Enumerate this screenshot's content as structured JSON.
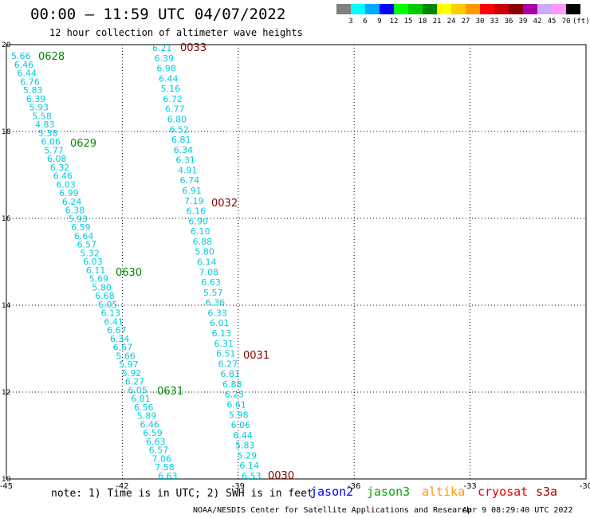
{
  "header": {
    "title": "00:00 – 11:59 UTC 04/07/2022",
    "subtitle": "12 hour collection of altimeter wave heights"
  },
  "legend": {
    "unit": "(ft)",
    "colors": [
      "#808080",
      "#00ffff",
      "#00aaff",
      "#0000ff",
      "#00ff00",
      "#00cc00",
      "#008800",
      "#ffff00",
      "#ffcc00",
      "#ff9900",
      "#ff0000",
      "#cc0000",
      "#880000",
      "#aa00aa",
      "#ccaaff",
      "#ff99ff",
      "#000000"
    ],
    "labels": [
      "3",
      "6",
      "9",
      "12",
      "15",
      "18",
      "21",
      "24",
      "27",
      "30",
      "33",
      "36",
      "39",
      "42",
      "45",
      "70"
    ]
  },
  "axes": {
    "x_ticks": [
      "-45",
      "-42",
      "-39",
      "-36",
      "-33",
      "-30"
    ],
    "y_ticks": [
      "10",
      "12",
      "14",
      "16",
      "18",
      "20"
    ],
    "lon_range": [
      -45,
      -30
    ],
    "lat_range": [
      10,
      20
    ]
  },
  "passes": [
    {
      "time": "0628",
      "color": "#008800"
    },
    {
      "time": "0629",
      "color": "#008800"
    },
    {
      "time": "0630",
      "color": "#008800"
    },
    {
      "time": "0631",
      "color": "#008800"
    },
    {
      "time": "0033",
      "color": "#880000"
    },
    {
      "time": "0032",
      "color": "#880000"
    },
    {
      "time": "0031",
      "color": "#880000"
    },
    {
      "time": "0030",
      "color": "#880000"
    }
  ],
  "track1": {
    "color": "#00ccdd",
    "values": [
      "5.66",
      "6.46",
      "6.44",
      "6.76",
      "5.83",
      "6.39",
      "5.93",
      "5.58",
      "4.83",
      "5.38",
      "6.06",
      "5.77",
      "6.08",
      "6.32",
      "6.46",
      "6.03",
      "6.99",
      "6.24",
      "6.38",
      "5.93",
      "6.59",
      "6.64",
      "6.57",
      "5.32",
      "6.03",
      "6.11",
      "5.69",
      "5.80",
      "6.68",
      "6.05",
      "6.13",
      "6.41",
      "6.67",
      "6.34",
      "6.67",
      "5.66",
      "5.97",
      "5.92",
      "6.27",
      "6.05",
      "6.81",
      "6.56",
      "5.89",
      "6.46",
      "6.59",
      "6.63",
      "6.57",
      "7.06",
      "7.58",
      "6.63"
    ]
  },
  "track2": {
    "color": "#00ccdd",
    "values": [
      "6.21",
      "6.39",
      "6.98",
      "6.44",
      "5.16",
      "6.72",
      "6.77",
      "6.80",
      "6.52",
      "6.81",
      "6.34",
      "6.31",
      "4.91",
      "6.74",
      "6.91",
      "7.19",
      "6.16",
      "6.90",
      "6.10",
      "6.88",
      "5.80",
      "6.14",
      "7.08",
      "6.63",
      "5.57",
      "6.36",
      "6.33",
      "6.01",
      "6.13",
      "6.31",
      "6.51",
      "6.27",
      "6.81",
      "6.88",
      "6.25",
      "6.61",
      "5.98",
      "6.06",
      "6.44",
      "5.83",
      "5.29",
      "6.14",
      "6.53"
    ]
  },
  "footer": {
    "note": "note: 1) Time is in UTC; 2) SWH is in feet",
    "satellites": [
      {
        "name": "jason2",
        "color": "#0000ff"
      },
      {
        "name": "jason3",
        "color": "#00aa00"
      },
      {
        "name": "altika",
        "color": "#ff9900"
      },
      {
        "name": "cryosat",
        "color": "#ee0000"
      },
      {
        "name": "s3a",
        "color": "#aa0000"
      }
    ],
    "credit": "NOAA/NESDIS Center for Satellite Applications and Research",
    "timestamp": "Apr  9 08:29:40 UTC 2022"
  }
}
